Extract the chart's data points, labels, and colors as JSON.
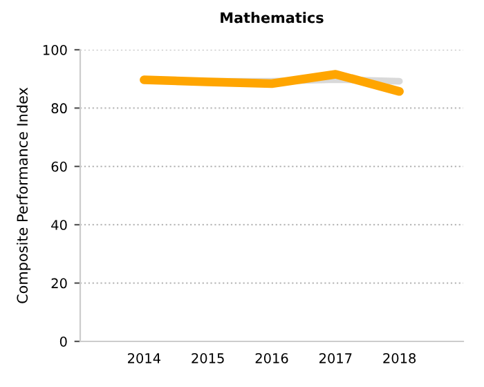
{
  "chart_data": {
    "type": "line",
    "title": "Mathematics",
    "ylabel": "Composite Performance Index",
    "categories": [
      "2014",
      "2015",
      "2016",
      "2017",
      "2018"
    ],
    "series": [
      {
        "color": "#d9d9d9",
        "values": [
          89.7,
          89.2,
          89.2,
          89.8,
          89.2
        ]
      },
      {
        "color": "#ffa500",
        "values": [
          89.7,
          89.0,
          88.4,
          91.6,
          85.7
        ]
      }
    ],
    "ylim": [
      0,
      100
    ],
    "yticks": [
      0,
      20,
      40,
      60,
      80,
      100
    ],
    "grid": "y",
    "legend": false,
    "marker": "none",
    "line_style": "solid"
  }
}
